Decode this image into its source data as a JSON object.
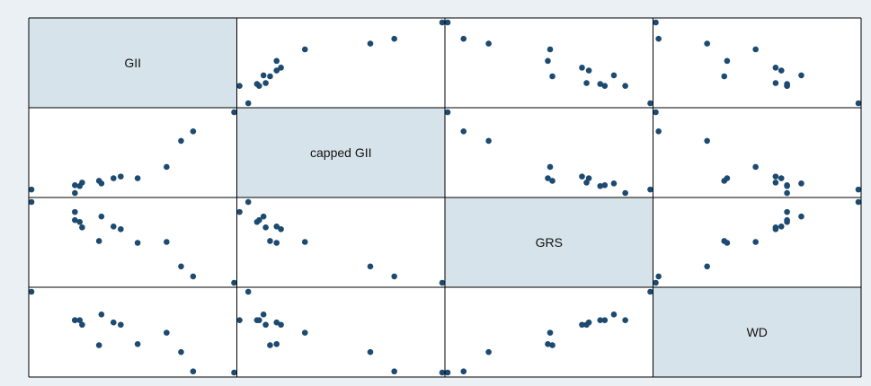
{
  "chart_data": {
    "type": "scatter_matrix",
    "color": "#1d4a70",
    "variables": [
      {
        "name": "GII",
        "values": [
          0.14,
          0.32,
          0.32,
          0.35,
          0.34,
          0.43,
          0.42,
          0.48,
          0.51,
          0.58,
          0.7,
          0.76,
          0.81,
          0.98
        ]
      },
      {
        "name": "capped GII",
        "values": [
          0.06,
          0.02,
          0.11,
          0.14,
          0.1,
          0.13,
          0.16,
          0.19,
          0.21,
          0.19,
          0.32,
          0.62,
          0.73,
          0.95
        ]
      },
      {
        "name": "GRS",
        "values": [
          0.94,
          0.83,
          0.74,
          0.66,
          0.72,
          0.78,
          0.51,
          0.67,
          0.64,
          0.49,
          0.5,
          0.23,
          0.12,
          0.05
        ]
      },
      {
        "name": "WD",
        "values": [
          0.85,
          0.6,
          0.6,
          0.56,
          0.6,
          0.65,
          0.38,
          0.58,
          0.56,
          0.39,
          0.49,
          0.32,
          0.15,
          0.14
        ]
      }
    ]
  }
}
